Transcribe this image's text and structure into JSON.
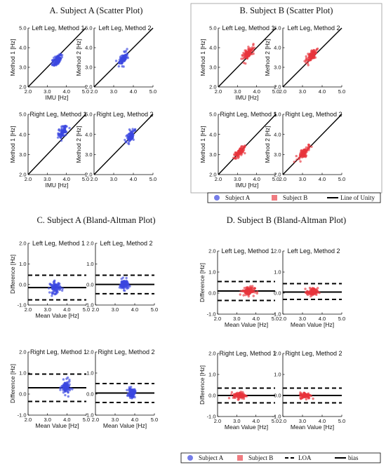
{
  "colors": {
    "subject_a": "#3b46e0",
    "subject_b": "#e8343c",
    "line": "#000000"
  },
  "panels": [
    {
      "id": "A",
      "title": "A. Subject A (Scatter Plot)"
    },
    {
      "id": "B",
      "title": "B. Subject B (Scatter Plot)"
    },
    {
      "id": "C",
      "title": "C. Subject A (Bland-Altman Plot)"
    },
    {
      "id": "D",
      "title": "D. Subject B (Bland-Altman Plot)"
    }
  ],
  "legends": {
    "scatter": [
      "Subject A",
      "Subject B",
      "Line of Unity"
    ],
    "bland_altman": [
      "Subject A",
      "Subject B",
      "LOA",
      "bias"
    ]
  },
  "chart_data": [
    {
      "type": "scatter",
      "panel": "A",
      "title": "Left Leg, Method 1",
      "series": "Subject A",
      "xlabel": "IMU [Hz]",
      "ylabel": "Method 1 [Hz]",
      "xlim": [
        2.0,
        5.0
      ],
      "ylim": [
        2.0,
        5.0
      ],
      "xticks": [
        "2.0",
        "3.0",
        "4.0",
        "5.0"
      ],
      "yticks": [
        "2.0",
        "3.0",
        "4.0",
        "5.0"
      ],
      "unity_line": true,
      "cluster": {
        "x_center": 3.5,
        "x_spread": 0.25,
        "y_center": 3.35,
        "y_spread": 0.3
      }
    },
    {
      "type": "scatter",
      "panel": "A",
      "title": "Left Leg, Method 2",
      "series": "Subject A",
      "xlabel": "",
      "ylabel": "Method 2 [Hz]",
      "xlim": [
        2.0,
        5.0
      ],
      "ylim": [
        2.0,
        5.0
      ],
      "xticks": [
        "2.0",
        "3.0",
        "4.0",
        "5.0"
      ],
      "yticks": [
        "2.0",
        "3.0",
        "4.0",
        "5.0"
      ],
      "unity_line": true,
      "cluster": {
        "x_center": 3.5,
        "x_spread": 0.2,
        "y_center": 3.45,
        "y_spread": 0.3
      }
    },
    {
      "type": "scatter",
      "panel": "A",
      "title": "Right Leg, Method 1",
      "series": "Subject A",
      "xlabel": "IMU [Hz]",
      "ylabel": "Method 1 [Hz]",
      "xlim": [
        2.0,
        5.0
      ],
      "ylim": [
        2.0,
        5.0
      ],
      "xticks": [
        "2.0",
        "3.0",
        "4.0",
        "5.0"
      ],
      "yticks": [
        "2.0",
        "3.0",
        "4.0",
        "5.0"
      ],
      "unity_line": true,
      "cluster": {
        "x_center": 3.8,
        "x_spread": 0.2,
        "y_center": 4.1,
        "y_spread": 0.35
      }
    },
    {
      "type": "scatter",
      "panel": "A",
      "title": "Right Leg, Method 2",
      "series": "Subject A",
      "xlabel": "",
      "ylabel": "Method 2 [Hz]",
      "xlim": [
        2.0,
        5.0
      ],
      "ylim": [
        2.0,
        5.0
      ],
      "xticks": [
        "2.0",
        "3.0",
        "4.0",
        "5.0"
      ],
      "yticks": [
        "2.0",
        "3.0",
        "4.0",
        "5.0"
      ],
      "unity_line": true,
      "cluster": {
        "x_center": 3.85,
        "x_spread": 0.18,
        "y_center": 3.9,
        "y_spread": 0.3
      }
    },
    {
      "type": "scatter",
      "panel": "B",
      "title": "Left Leg, Method 1",
      "series": "Subject B",
      "xlabel": "IMU [Hz]",
      "ylabel": "Method 1 [Hz]",
      "xlim": [
        2.0,
        5.0
      ],
      "ylim": [
        2.0,
        5.0
      ],
      "xticks": [
        "2.0",
        "3.0",
        "4.0",
        "5.0"
      ],
      "yticks": [
        "2.0",
        "3.0",
        "4.0",
        "5.0"
      ],
      "unity_line": true,
      "cluster": {
        "x_center": 3.55,
        "x_spread": 0.3,
        "y_center": 3.7,
        "y_spread": 0.35
      }
    },
    {
      "type": "scatter",
      "panel": "B",
      "title": "Left Leg, Method 2",
      "series": "Subject B",
      "xlabel": "",
      "ylabel": "Method 2 [Hz]",
      "xlim": [
        2.0,
        5.0
      ],
      "ylim": [
        2.0,
        5.0
      ],
      "xticks": [
        "2.0",
        "3.0",
        "4.0",
        "5.0"
      ],
      "yticks": [
        "2.0",
        "3.0",
        "4.0",
        "5.0"
      ],
      "unity_line": true,
      "cluster": {
        "x_center": 3.45,
        "x_spread": 0.25,
        "y_center": 3.55,
        "y_spread": 0.3
      }
    },
    {
      "type": "scatter",
      "panel": "B",
      "title": "Right Leg, Method 1",
      "series": "Subject B",
      "xlabel": "IMU [Hz]",
      "ylabel": "Method 1 [Hz]",
      "xlim": [
        2.0,
        5.0
      ],
      "ylim": [
        2.0,
        5.0
      ],
      "xticks": [
        "2.0",
        "3.0",
        "4.0",
        "5.0"
      ],
      "yticks": [
        "2.0",
        "3.0",
        "4.0",
        "5.0"
      ],
      "unity_line": true,
      "cluster": {
        "x_center": 3.1,
        "x_spread": 0.25,
        "y_center": 3.1,
        "y_spread": 0.25
      }
    },
    {
      "type": "scatter",
      "panel": "B",
      "title": "Right Leg, Method 2",
      "series": "Subject B",
      "xlabel": "",
      "ylabel": "Method 2 [Hz]",
      "xlim": [
        2.0,
        5.0
      ],
      "ylim": [
        2.0,
        5.0
      ],
      "xticks": [
        "2.0",
        "3.0",
        "4.0",
        "5.0"
      ],
      "yticks": [
        "2.0",
        "3.0",
        "4.0",
        "5.0"
      ],
      "unity_line": true,
      "cluster": {
        "x_center": 3.1,
        "x_spread": 0.25,
        "y_center": 3.1,
        "y_spread": 0.25
      }
    },
    {
      "type": "scatter",
      "panel": "C",
      "title": "Left Leg, Method 1",
      "series": "Subject A",
      "xlabel": "Mean Value [Hz]",
      "ylabel": "Difference [Hz]",
      "xlim": [
        2.0,
        5.0
      ],
      "ylim": [
        -1.0,
        2.0
      ],
      "xticks": [
        "2.0",
        "3.0",
        "4.0",
        "5.0"
      ],
      "yticks": [
        "-1.0",
        "0.0",
        "1.0",
        "2.0"
      ],
      "bias": -0.15,
      "loa": [
        -0.75,
        0.45
      ],
      "cluster": {
        "x_center": 3.4,
        "x_spread": 0.25,
        "y_center": -0.15,
        "y_spread": 0.25
      }
    },
    {
      "type": "scatter",
      "panel": "C",
      "title": "Left Leg, Method 2",
      "series": "Subject A",
      "xlabel": "",
      "ylabel": "",
      "xlim": [
        2.0,
        5.0
      ],
      "ylim": [
        -1.0,
        2.0
      ],
      "xticks": [
        "2.0",
        "3.0",
        "4.0",
        "5.0"
      ],
      "yticks": [
        "-1.0",
        "0.0",
        "1.0",
        "2.0"
      ],
      "bias": 0.0,
      "loa": [
        -0.45,
        0.45
      ],
      "cluster": {
        "x_center": 3.45,
        "x_spread": 0.2,
        "y_center": 0.0,
        "y_spread": 0.22
      }
    },
    {
      "type": "scatter",
      "panel": "C",
      "title": "Right Leg, Method 1",
      "series": "Subject A",
      "xlabel": "Mean Value [Hz]",
      "ylabel": "Difference [Hz]",
      "xlim": [
        2.0,
        5.0
      ],
      "ylim": [
        -1.0,
        2.0
      ],
      "xticks": [
        "2.0",
        "3.0",
        "4.0",
        "5.0"
      ],
      "yticks": [
        "-1.0",
        "0.0",
        "1.0",
        "2.0"
      ],
      "bias": 0.3,
      "loa": [
        -0.35,
        0.95
      ],
      "cluster": {
        "x_center": 3.95,
        "x_spread": 0.2,
        "y_center": 0.3,
        "y_spread": 0.3
      }
    },
    {
      "type": "scatter",
      "panel": "C",
      "title": "Right Leg, Method 2",
      "series": "Subject A",
      "xlabel": "Mean Value [Hz]",
      "ylabel": "",
      "xlim": [
        2.0,
        5.0
      ],
      "ylim": [
        -1.0,
        2.0
      ],
      "xticks": [
        "2.0",
        "3.0",
        "4.0",
        "5.0"
      ],
      "yticks": [
        "-1.0",
        "0.0",
        "1.0",
        "2.0"
      ],
      "bias": 0.05,
      "loa": [
        -0.4,
        0.5
      ],
      "cluster": {
        "x_center": 3.85,
        "x_spread": 0.15,
        "y_center": 0.05,
        "y_spread": 0.2
      }
    },
    {
      "type": "scatter",
      "panel": "D",
      "title": "Left Leg, Method 1",
      "series": "Subject B",
      "xlabel": "Mean Value [Hz]",
      "ylabel": "Difference [Hz]",
      "xlim": [
        2.0,
        5.0
      ],
      "ylim": [
        -1.0,
        2.0
      ],
      "xticks": [
        "2.0",
        "3.0",
        "4.0",
        "5.0"
      ],
      "yticks": [
        "-1.0",
        "0.0",
        "1.0",
        "2.0"
      ],
      "bias": 0.1,
      "loa": [
        -0.35,
        0.55
      ],
      "cluster": {
        "x_center": 3.6,
        "x_spread": 0.3,
        "y_center": 0.1,
        "y_spread": 0.2
      }
    },
    {
      "type": "scatter",
      "panel": "D",
      "title": "Left Leg, Method 2",
      "series": "Subject B",
      "xlabel": "Mean Value [Hz]",
      "ylabel": "",
      "xlim": [
        2.0,
        5.0
      ],
      "ylim": [
        -1.0,
        2.0
      ],
      "xticks": [
        "2.0",
        "3.0",
        "4.0",
        "5.0"
      ],
      "yticks": [
        "-1.0",
        "0.0",
        "1.0",
        "2.0"
      ],
      "bias": 0.05,
      "loa": [
        -0.3,
        0.45
      ],
      "cluster": {
        "x_center": 3.5,
        "x_spread": 0.25,
        "y_center": 0.05,
        "y_spread": 0.17
      }
    },
    {
      "type": "scatter",
      "panel": "D",
      "title": "Right Leg, Method 1",
      "series": "Subject B",
      "xlabel": "Mean Value [Hz]",
      "ylabel": "Difference [Hz]",
      "xlim": [
        2.0,
        5.0
      ],
      "ylim": [
        -1.0,
        2.0
      ],
      "xticks": [
        "2.0",
        "3.0",
        "4.0",
        "5.0"
      ],
      "yticks": [
        "-1.0",
        "0.0",
        "1.0",
        "2.0"
      ],
      "bias": 0.0,
      "loa": [
        -0.35,
        0.35
      ],
      "cluster": {
        "x_center": 3.15,
        "x_spread": 0.3,
        "y_center": 0.0,
        "y_spread": 0.15
      }
    },
    {
      "type": "scatter",
      "panel": "D",
      "title": "Right Leg, Method 2",
      "series": "Subject B",
      "xlabel": "Mean Value [Hz]",
      "ylabel": "",
      "xlim": [
        2.0,
        5.0
      ],
      "ylim": [
        -1.0,
        2.0
      ],
      "xticks": [
        "2.0",
        "3.0",
        "4.0",
        "5.0"
      ],
      "yticks": [
        "-1.0",
        "0.0",
        "1.0",
        "2.0"
      ],
      "bias": 0.0,
      "loa": [
        -0.35,
        0.35
      ],
      "cluster": {
        "x_center": 3.15,
        "x_spread": 0.25,
        "y_center": 0.0,
        "y_spread": 0.13
      }
    }
  ]
}
